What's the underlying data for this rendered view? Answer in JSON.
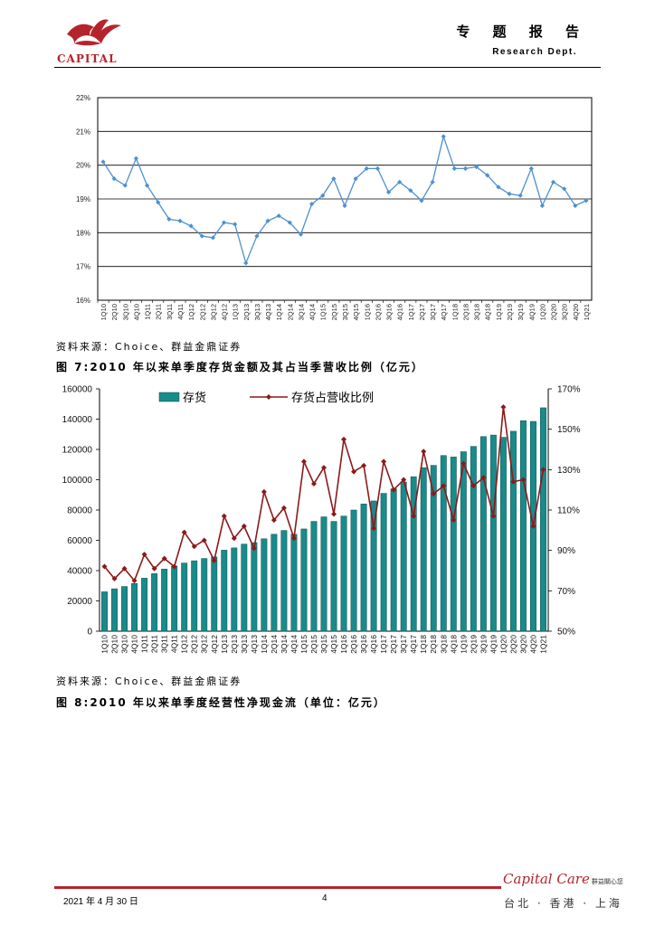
{
  "header": {
    "logo_text": "CAPITAL",
    "report_type": "专 题 报 告",
    "dept": "Research Dept."
  },
  "colors": {
    "brand_red": "#b5242c",
    "line_blue": "#4f90d0",
    "bar_teal": "#1a8a8a",
    "ratio_line": "#8b1a1a"
  },
  "chart1_source": "资料来源：Choice、群益金鼎证券",
  "figure7": {
    "title": "图 7:2010 年以来单季度存货金额及其占当季营收比例（亿元）"
  },
  "figure7_source": "资料来源：Choice、群益金鼎证券",
  "figure8": {
    "title": "图 8:2010 年以来单季度经营性净现金流（单位：亿元）"
  },
  "footer": {
    "date": "2021 年 4 月 30 日",
    "page": "4",
    "cities": "台北 · 香港 · 上海",
    "brand": "Capital Care",
    "brand_sub": "群益關心您"
  },
  "chart_data": [
    {
      "type": "line",
      "title": "",
      "quarters": [
        "1Q10",
        "2Q10",
        "3Q10",
        "4Q10",
        "1Q11",
        "2Q11",
        "3Q11",
        "4Q11",
        "1Q12",
        "2Q12",
        "3Q12",
        "4Q12",
        "1Q13",
        "2Q13",
        "3Q13",
        "4Q13",
        "1Q14",
        "2Q14",
        "3Q14",
        "4Q14",
        "1Q15",
        "2Q15",
        "3Q15",
        "4Q15",
        "1Q16",
        "2Q16",
        "3Q16",
        "4Q16",
        "1Q17",
        "2Q17",
        "3Q17",
        "4Q17",
        "1Q18",
        "2Q18",
        "3Q18",
        "4Q18",
        "1Q19",
        "2Q19",
        "3Q19",
        "4Q19",
        "1Q20",
        "2Q20",
        "3Q20",
        "4Q20",
        "1Q21"
      ],
      "y_tick_labels": [
        "16%",
        "17%",
        "18%",
        "19%",
        "20%",
        "21%",
        "22%"
      ],
      "ylim": [
        16,
        22
      ],
      "values": [
        20.1,
        19.6,
        19.4,
        20.2,
        19.4,
        18.9,
        18.4,
        18.35,
        18.2,
        17.9,
        17.85,
        18.3,
        18.25,
        17.1,
        17.9,
        18.35,
        18.5,
        18.3,
        17.95,
        18.85,
        19.1,
        19.6,
        18.8,
        19.6,
        19.9,
        19.9,
        19.2,
        19.5,
        19.25,
        18.95,
        19.5,
        20.85,
        19.9,
        19.9,
        19.95,
        19.7,
        19.35,
        19.15,
        19.1,
        19.9,
        18.8,
        19.5,
        19.3,
        18.8,
        18.95
      ]
    },
    {
      "type": "bar",
      "title": "",
      "legend": [
        "存货",
        "存货占营收比例"
      ],
      "quarters": [
        "1Q10",
        "2Q10",
        "3Q10",
        "4Q10",
        "1Q11",
        "2Q11",
        "3Q11",
        "4Q11",
        "1Q12",
        "2Q12",
        "3Q12",
        "4Q12",
        "1Q13",
        "2Q13",
        "3Q13",
        "4Q13",
        "1Q14",
        "2Q14",
        "3Q14",
        "4Q14",
        "1Q15",
        "2Q15",
        "3Q15",
        "4Q15",
        "1Q16",
        "2Q16",
        "3Q16",
        "4Q16",
        "1Q17",
        "2Q17",
        "3Q17",
        "4Q17",
        "1Q18",
        "2Q18",
        "3Q18",
        "4Q18",
        "1Q19",
        "2Q19",
        "3Q19",
        "4Q19",
        "1Q20",
        "2Q20",
        "3Q20",
        "4Q20",
        "1Q21"
      ],
      "y_left_ticks": [
        "0",
        "20000",
        "40000",
        "60000",
        "80000",
        "100000",
        "120000",
        "140000",
        "160000"
      ],
      "y_right_ticks": [
        "50%",
        "70%",
        "90%",
        "110%",
        "130%",
        "150%",
        "170%"
      ],
      "ylim_left": [
        0,
        160000
      ],
      "ylim_right": [
        50,
        170
      ],
      "series": [
        {
          "name": "存货",
          "type": "bar",
          "axis": "left",
          "values": [
            26000,
            28000,
            29500,
            31500,
            35000,
            38000,
            41000,
            43000,
            45000,
            46500,
            48000,
            49000,
            53500,
            55000,
            57500,
            58500,
            61000,
            64000,
            66500,
            64000,
            67500,
            72500,
            75500,
            72500,
            76000,
            80000,
            84000,
            86000,
            91000,
            94000,
            98500,
            102000,
            108000,
            109500,
            116000,
            115000,
            118500,
            122000,
            128500,
            129500,
            128000,
            132000,
            139000,
            138500,
            147500
          ]
        },
        {
          "name": "存货占营收比例",
          "type": "line",
          "axis": "right",
          "values": [
            82,
            76,
            81,
            75,
            88,
            81,
            86,
            82,
            99,
            92,
            95,
            85,
            107,
            96,
            102,
            91,
            119,
            105,
            111,
            96,
            134,
            123,
            131,
            108,
            145,
            129,
            132,
            101,
            134,
            120,
            125,
            107,
            139,
            118,
            122,
            105,
            133,
            122,
            126,
            107,
            161,
            124,
            125,
            102,
            130
          ]
        }
      ]
    }
  ]
}
